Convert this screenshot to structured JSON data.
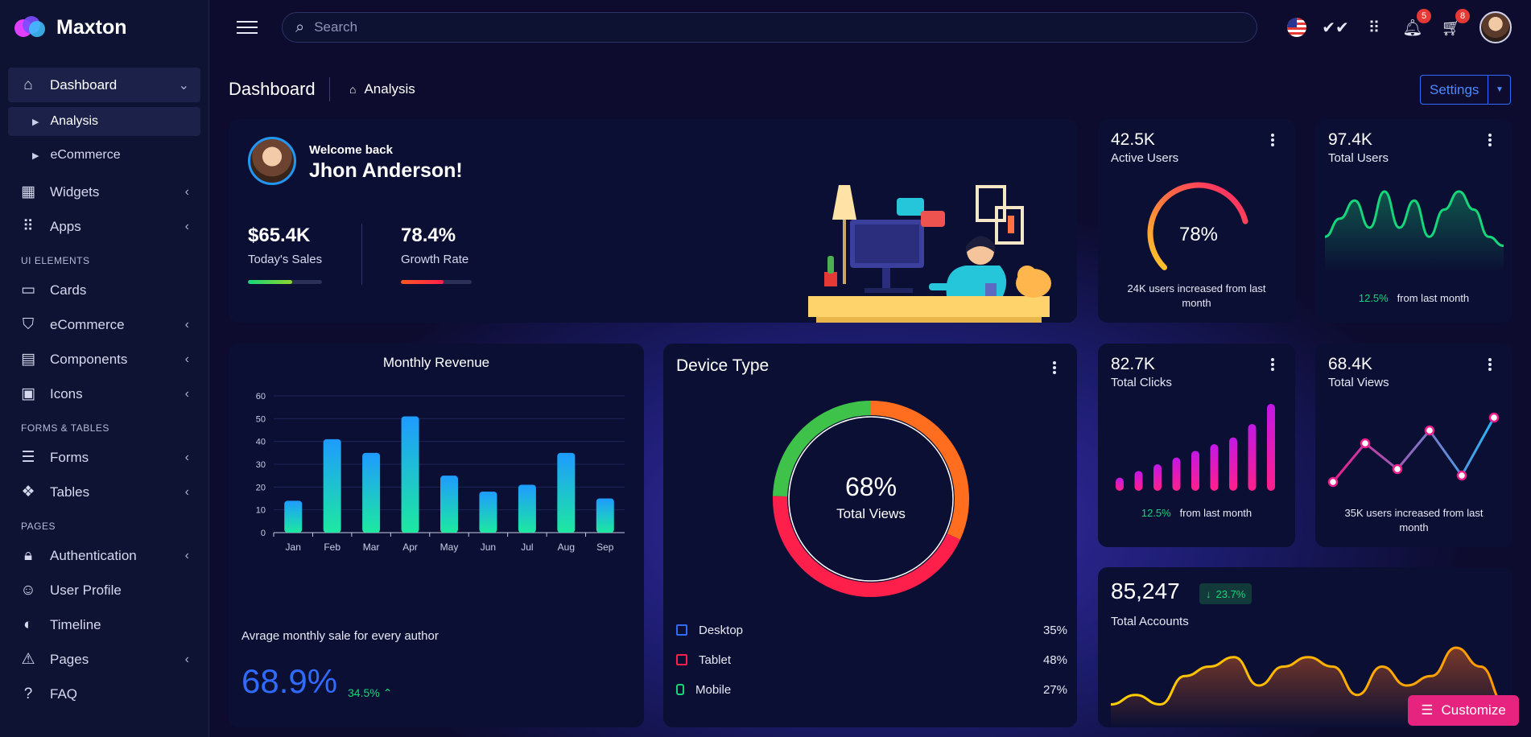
{
  "brand": {
    "name": "Maxton"
  },
  "sidebar": {
    "items": [
      {
        "label": "Dashboard",
        "icon": "home-icon"
      },
      {
        "label": "Analysis"
      },
      {
        "label": "eCommerce"
      },
      {
        "label": "Widgets",
        "icon": "widgets-icon"
      },
      {
        "label": "Apps",
        "icon": "apps-icon"
      },
      {
        "section": "UI ELEMENTS"
      },
      {
        "label": "Cards",
        "icon": "card-icon"
      },
      {
        "label": "eCommerce",
        "icon": "shopping-bag-icon"
      },
      {
        "label": "Components",
        "icon": "components-icon"
      },
      {
        "label": "Icons",
        "icon": "icons-icon"
      },
      {
        "section": "FORMS & TABLES"
      },
      {
        "label": "Forms",
        "icon": "forms-icon"
      },
      {
        "label": "Tables",
        "icon": "tables-icon"
      },
      {
        "section": "PAGES"
      },
      {
        "label": "Authentication",
        "icon": "lock-icon"
      },
      {
        "label": "User Profile",
        "icon": "user-icon"
      },
      {
        "label": "Timeline",
        "icon": "timeline-icon"
      },
      {
        "label": "Pages",
        "icon": "warning-icon"
      },
      {
        "label": "FAQ",
        "icon": "help-icon"
      }
    ]
  },
  "topbar": {
    "search_placeholder": "Search",
    "notifications_count": "5",
    "cart_count": "8"
  },
  "header": {
    "title": "Dashboard",
    "breadcrumb": "Analysis",
    "settings_label": "Settings"
  },
  "welcome": {
    "greeting": "Welcome back",
    "name": "Jhon Anderson!",
    "sales_value": "$65.4K",
    "sales_label": "Today's Sales",
    "sales_progress": 0.6,
    "growth_value": "78.4%",
    "growth_label": "Growth Rate",
    "growth_progress": 0.6
  },
  "stats": {
    "active_users": {
      "value": "42.5K",
      "label": "Active Users",
      "gauge": "78%",
      "gauge_fraction": 0.78,
      "foot": "24K users increased from last month"
    },
    "total_users": {
      "value": "97.4K",
      "label": "Total Users",
      "change": "12.5%",
      "foot": "from last month"
    },
    "total_clicks": {
      "value": "82.7K",
      "label": "Total Clicks",
      "change": "12.5%",
      "foot": "from last month"
    },
    "total_views": {
      "value": "68.4K",
      "label": "Total Views",
      "foot": "35K users increased from last month"
    },
    "total_accounts": {
      "value": "85,247",
      "label": "Total Accounts",
      "change": "23.7%"
    }
  },
  "revenue": {
    "title": "Monthly Revenue",
    "caption": "Avrage monthly sale for every author",
    "big_value": "68.9%",
    "change": "34.5%"
  },
  "device": {
    "title": "Device Type",
    "center_value": "68%",
    "center_label": "Total Views",
    "legend": [
      {
        "label": "Desktop",
        "value": "35%",
        "color": "#2f6bff"
      },
      {
        "label": "Tablet",
        "value": "48%",
        "color": "#ff1f4b"
      },
      {
        "label": "Mobile",
        "value": "27%",
        "color": "#16d67a"
      }
    ]
  },
  "customize_label": "Customize",
  "chart_data": [
    {
      "type": "bar",
      "categories": [
        "Jan",
        "Feb",
        "Mar",
        "Apr",
        "May",
        "Jun",
        "Jul",
        "Aug",
        "Sep"
      ],
      "values": [
        14,
        41,
        35,
        51,
        25,
        18,
        21,
        35,
        15
      ],
      "yticks": [
        0,
        10,
        20,
        30,
        40,
        50,
        60
      ],
      "ylim": [
        0,
        60
      ],
      "grid": true
    },
    {
      "type": "pie",
      "categories": [
        "Desktop",
        "Tablet",
        "Mobile"
      ],
      "values": [
        35,
        48,
        27
      ]
    },
    {
      "type": "bar",
      "values": [
        1,
        2,
        3,
        4,
        5,
        6,
        7,
        9,
        12
      ]
    },
    {
      "type": "line",
      "values": [
        2,
        5,
        3,
        6,
        2.5,
        7
      ]
    },
    {
      "type": "area",
      "values": [
        3,
        5,
        7,
        4,
        8,
        4,
        7,
        3,
        6,
        8,
        6,
        3,
        2
      ]
    },
    {
      "type": "area",
      "values": [
        2,
        3,
        2,
        5,
        6,
        7,
        4,
        6,
        7,
        6,
        3,
        6,
        4,
        5,
        8,
        6,
        2
      ]
    }
  ]
}
